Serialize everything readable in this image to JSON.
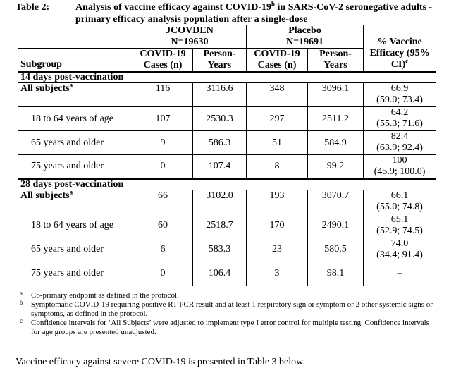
{
  "caption": {
    "label": "Table 2:",
    "title_part1": "Analysis of vaccine efficacy against COVID-19",
    "title_sup": "b",
    "title_part2": " in SARS-CoV-2 seronegative adults - primary efficacy analysis population after a single-dose"
  },
  "header": {
    "group1_name": "JCOVDEN",
    "group1_n": "N=19630",
    "group2_name": "Placebo",
    "group2_n": "N=19691",
    "col_cases": "COVID-19 Cases (n)",
    "col_person_years": "Person-Years",
    "col_efficacy": "% Vaccine Efficacy (95% CI)",
    "col_efficacy_sup": "c",
    "col_subgroup": "Subgroup"
  },
  "sections": [
    {
      "title": "14 days post-vaccination",
      "rows": [
        {
          "subgroup": "All subjects",
          "sup": "a",
          "bold": true,
          "jc_cases": "116",
          "jc_py": "3116.6",
          "pl_cases": "348",
          "pl_py": "3096.1",
          "ve": "66.9",
          "ci": "(59.0; 73.4)"
        },
        {
          "subgroup": "18 to 64 years of age",
          "sup": "",
          "bold": false,
          "jc_cases": "107",
          "jc_py": "2530.3",
          "pl_cases": "297",
          "pl_py": "2511.2",
          "ve": "64.2",
          "ci": "(55.3; 71.6)"
        },
        {
          "subgroup": "65 years and older",
          "sup": "",
          "bold": false,
          "jc_cases": "9",
          "jc_py": "586.3",
          "pl_cases": "51",
          "pl_py": "584.9",
          "ve": "82.4",
          "ci": "(63.9; 92.4)"
        },
        {
          "subgroup": "75 years and older",
          "sup": "",
          "bold": false,
          "jc_cases": "0",
          "jc_py": "107.4",
          "pl_cases": "8",
          "pl_py": "99.2",
          "ve": "100",
          "ci": "(45.9; 100.0)"
        }
      ]
    },
    {
      "title": "28 days post-vaccination",
      "rows": [
        {
          "subgroup": "All subjects",
          "sup": "a",
          "bold": true,
          "jc_cases": "66",
          "jc_py": "3102.0",
          "pl_cases": "193",
          "pl_py": "3070.7",
          "ve": "66.1",
          "ci": "(55.0; 74.8)"
        },
        {
          "subgroup": "18 to 64 years of age",
          "sup": "",
          "bold": false,
          "jc_cases": "60",
          "jc_py": "2518.7",
          "pl_cases": "170",
          "pl_py": "2490.1",
          "ve": "65.1",
          "ci": "(52.9; 74.5)"
        },
        {
          "subgroup": "65 years and older",
          "sup": "",
          "bold": false,
          "jc_cases": "6",
          "jc_py": "583.3",
          "pl_cases": "23",
          "pl_py": "580.5",
          "ve": "74.0",
          "ci": "(34.4; 91.4)"
        },
        {
          "subgroup": "75 years and older",
          "sup": "",
          "bold": false,
          "jc_cases": "0",
          "jc_py": "106.4",
          "pl_cases": "3",
          "pl_py": "98.1",
          "ve": "–",
          "ci": ""
        }
      ]
    }
  ],
  "footnotes": [
    {
      "mark": "a",
      "text": "Co-primary endpoint as defined in the protocol."
    },
    {
      "mark": "b",
      "text": "Symptomatic COVID-19 requiring positive RT-PCR result and at least 1 respiratory sign or symptom or 2 other systemic signs or symptoms, as defined in the protocol."
    },
    {
      "mark": "c",
      "text": "Confidence intervals for ‘All Subjects’ were adjusted to implement type I error control for multiple testing. Confidence intervals for age groups are presented unadjusted."
    }
  ],
  "paragraph": "Vaccine efficacy against severe COVID-19 is presented in Table 3 below."
}
